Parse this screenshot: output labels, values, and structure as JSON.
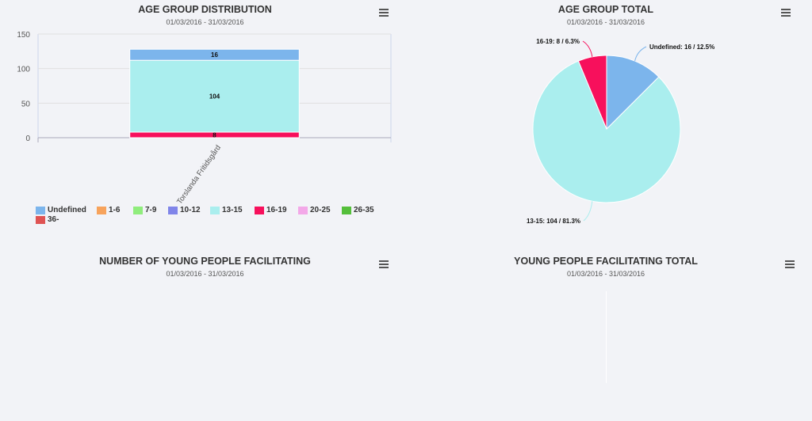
{
  "panels": {
    "age_dist": {
      "title": "AGE GROUP DISTRIBUTION",
      "subtitle": "01/03/2016 - 31/03/2016"
    },
    "age_total": {
      "title": "AGE GROUP TOTAL",
      "subtitle": "01/03/2016 - 31/03/2016"
    },
    "young_num": {
      "title": "NUMBER OF YOUNG PEOPLE FACILITATING",
      "subtitle": "01/03/2016 - 31/03/2016"
    },
    "young_total": {
      "title": "YOUNG PEOPLE FACILITATING TOTAL",
      "subtitle": "01/03/2016 - 31/03/2016"
    }
  },
  "icons": {
    "menu": "hamburger-menu-icon"
  },
  "chart_data": [
    {
      "type": "bar",
      "stacked": true,
      "title": "AGE GROUP DISTRIBUTION",
      "subtitle": "01/03/2016 - 31/03/2016",
      "categories": [
        "Torslanda Fritidsgård"
      ],
      "ylim": [
        0,
        150
      ],
      "yticks": [
        0,
        50,
        100,
        150
      ],
      "grid": true,
      "legend_position": "bottom-left",
      "series": [
        {
          "name": "Undefined",
          "color": "#7cb5ec",
          "values": [
            16
          ]
        },
        {
          "name": "1-6",
          "color": "#f7a35c",
          "values": [
            0
          ]
        },
        {
          "name": "7-9",
          "color": "#90ed7d",
          "values": [
            0
          ]
        },
        {
          "name": "10-12",
          "color": "#8085e9",
          "values": [
            0
          ]
        },
        {
          "name": "13-15",
          "color": "#aaeeee",
          "values": [
            104
          ]
        },
        {
          "name": "16-19",
          "color": "#f7105c",
          "values": [
            8
          ]
        },
        {
          "name": "20-25",
          "color": "#f3a8e8",
          "values": [
            0
          ]
        },
        {
          "name": "26-35",
          "color": "#55bf3b",
          "values": [
            0
          ]
        },
        {
          "name": "36-",
          "color": "#df5353",
          "values": [
            0
          ]
        }
      ]
    },
    {
      "type": "pie",
      "title": "AGE GROUP TOTAL",
      "subtitle": "01/03/2016 - 31/03/2016",
      "slices": [
        {
          "name": "Undefined",
          "value": 16,
          "percent": 12.5,
          "color": "#7cb5ec",
          "label": "Undefined: 16 / 12.5%"
        },
        {
          "name": "13-15",
          "value": 104,
          "percent": 81.3,
          "color": "#aaeeee",
          "label": "13-15: 104 / 81.3%"
        },
        {
          "name": "16-19",
          "value": 8,
          "percent": 6.3,
          "color": "#f7105c",
          "label": "16-19: 8 / 6.3%"
        }
      ]
    },
    {
      "type": "bar",
      "title": "NUMBER OF YOUNG PEOPLE FACILITATING",
      "subtitle": "01/03/2016 - 31/03/2016",
      "series": []
    },
    {
      "type": "pie",
      "title": "YOUNG PEOPLE FACILITATING TOTAL",
      "subtitle": "01/03/2016 - 31/03/2016",
      "slices": []
    }
  ]
}
